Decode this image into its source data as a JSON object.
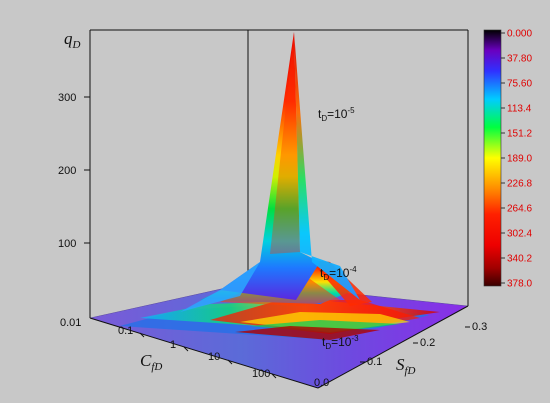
{
  "chart_data": {
    "type": "surface3d",
    "title": "",
    "z_axis": {
      "label": "q",
      "label_sub": "D",
      "ticks": [
        "100",
        "200",
        "300"
      ],
      "tick_values": [
        100,
        200,
        300
      ],
      "range": [
        0,
        400
      ]
    },
    "x_axis": {
      "label": "C",
      "label_sub": "fD",
      "ticks": [
        "0.01",
        "0.1",
        "1",
        "10",
        "100"
      ],
      "scale": "log"
    },
    "y_axis": {
      "label": "S",
      "label_sub": "fD",
      "ticks": [
        "0.0",
        "0.1",
        "0.2",
        "0.3"
      ],
      "range": [
        0,
        0.3
      ]
    },
    "colorbar": {
      "ticks": [
        "0.000",
        "37.80",
        "75.60",
        "113.4",
        "151.2",
        "189.0",
        "226.8",
        "264.6",
        "302.4",
        "340.2",
        "378.0"
      ],
      "range": [
        0,
        378
      ],
      "colors": [
        "#000000",
        "#8000ff",
        "#2020ff",
        "#00bfff",
        "#00ff40",
        "#ffff00",
        "#ff8000",
        "#ff2000",
        "#ee0000",
        "#a00000",
        "#400000"
      ]
    },
    "series": [
      {
        "label": "t",
        "label_sub": "D",
        "label_eq": "=10",
        "label_exp": "-5",
        "peak_q": 340
      },
      {
        "label": "t",
        "label_sub": "D",
        "label_eq": "=10",
        "label_exp": "-4",
        "peak_q": 70
      },
      {
        "label": "t",
        "label_sub": "D",
        "label_eq": "=10",
        "label_exp": "-3",
        "peak_q": 15
      }
    ]
  }
}
